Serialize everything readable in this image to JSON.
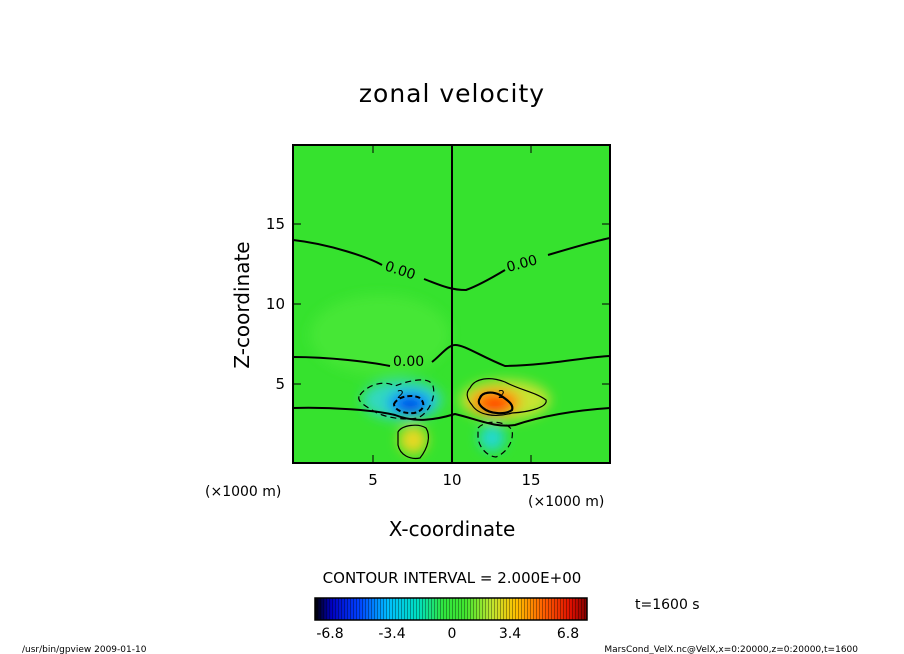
{
  "chart_data": {
    "type": "heatmap",
    "title": "zonal velocity",
    "xlabel": "X-coordinate",
    "ylabel": "Z-coordinate",
    "x_unit": "(×1000 m)",
    "y_unit": "(×1000 m)",
    "xlim": [
      0,
      20
    ],
    "ylim": [
      0,
      20
    ],
    "x_ticks": [
      "5",
      "10",
      "15"
    ],
    "y_ticks": [
      "5",
      "10",
      "15"
    ],
    "contour_interval": "CONTOUR INTERVAL = 2.000E+00",
    "time_label": "t=1600 s",
    "colorbar_ticks": [
      "-6.8",
      "-3.4",
      "0",
      "3.4",
      "6.8"
    ],
    "colorbar_range": [
      -8.5,
      8.5
    ],
    "contour_labels": [
      "0.00",
      "0.00",
      "0.00",
      "0.00",
      "2",
      "2"
    ],
    "features": [
      {
        "name": "negative-core",
        "x": 7.3,
        "z": 3.5,
        "value": -6.5
      },
      {
        "name": "positive-core",
        "x": 12.7,
        "z": 3.5,
        "value": 7.5
      },
      {
        "name": "lower-positive",
        "x": 7.8,
        "z": 1.7,
        "value": 3.0
      },
      {
        "name": "lower-negative",
        "x": 12.3,
        "z": 1.5,
        "value": -3.0
      }
    ],
    "zero_contour_z": [
      14.2,
      10.9,
      6.7,
      7.5,
      3.5,
      3.1
    ]
  },
  "footer": {
    "left": "/usr/bin/gpview   2009-01-10",
    "right": "MarsCond_VelX.nc@VelX,x=0:20000,z=0:20000,t=1600"
  },
  "colors": {
    "background_field": "#33e633",
    "positive": "#ff3300",
    "negative": "#0033ff",
    "contour": "#000000"
  }
}
